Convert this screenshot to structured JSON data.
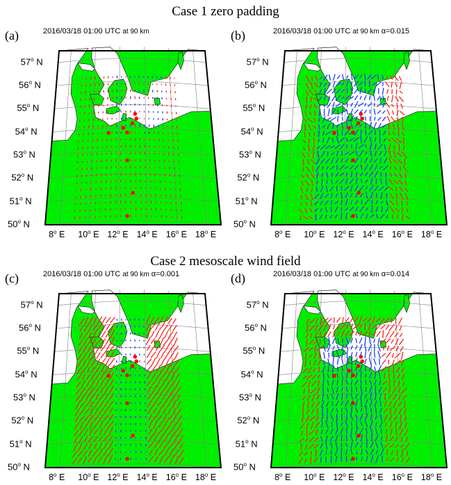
{
  "headings": {
    "case1": "Case 1 zero padding",
    "case2": "Case 2 mesoscale wind field"
  },
  "common": {
    "timestamp": "2016/03/18 01:00 UTC",
    "altitude": "at 90 km",
    "lat_labels": [
      "57°N",
      "56°N",
      "55°N",
      "54°N",
      "53°N",
      "52°N",
      "51°N",
      "50°N"
    ],
    "lon_labels": [
      "8° E",
      "10° E",
      "12° E",
      "14° E",
      "16° E",
      "18° E"
    ]
  },
  "panels": [
    {
      "letter": "(a)",
      "alpha": "",
      "case": "zero padding",
      "mode": "a"
    },
    {
      "letter": "(b)",
      "alpha": "α=0.015",
      "case": "zero padding",
      "mode": "b"
    },
    {
      "letter": "(c)",
      "alpha": "α=0.001",
      "case": "mesoscale wind field",
      "mode": "c"
    },
    {
      "letter": "(d)",
      "alpha": "α=0.014",
      "case": "mesoscale wind field",
      "mode": "d"
    }
  ],
  "colors": {
    "land": "#00ee00",
    "sea": "#ffffff",
    "vector_positive": "#ff2020",
    "vector_negative": "#1a3cff",
    "station": "#ff0000",
    "grid": "#808080"
  }
}
